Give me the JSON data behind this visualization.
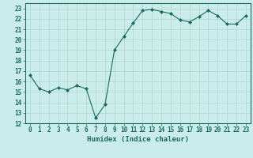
{
  "x": [
    0,
    1,
    2,
    3,
    4,
    5,
    6,
    7,
    8,
    9,
    10,
    11,
    12,
    13,
    14,
    15,
    16,
    17,
    18,
    19,
    20,
    21,
    22,
    23
  ],
  "y": [
    16.6,
    15.3,
    15.0,
    15.4,
    15.2,
    15.6,
    15.3,
    12.5,
    13.8,
    19.0,
    20.3,
    21.6,
    22.8,
    22.9,
    22.7,
    22.5,
    21.9,
    21.7,
    22.2,
    22.8,
    22.3,
    21.5,
    21.5,
    22.3
  ],
  "line_color": "#1a6b5a",
  "marker": "D",
  "marker_size": 2.0,
  "bg_color": "#caecea",
  "grid_color": "#b0d5d0",
  "xlabel": "Humidex (Indice chaleur)",
  "ylim": [
    12,
    23.5
  ],
  "yticks": [
    12,
    13,
    14,
    15,
    16,
    17,
    18,
    19,
    20,
    21,
    22,
    23
  ],
  "xticks": [
    0,
    1,
    2,
    3,
    4,
    5,
    6,
    7,
    8,
    9,
    10,
    11,
    12,
    13,
    14,
    15,
    16,
    17,
    18,
    19,
    20,
    21,
    22,
    23
  ],
  "tick_fontsize": 5.5,
  "xlabel_fontsize": 6.5
}
